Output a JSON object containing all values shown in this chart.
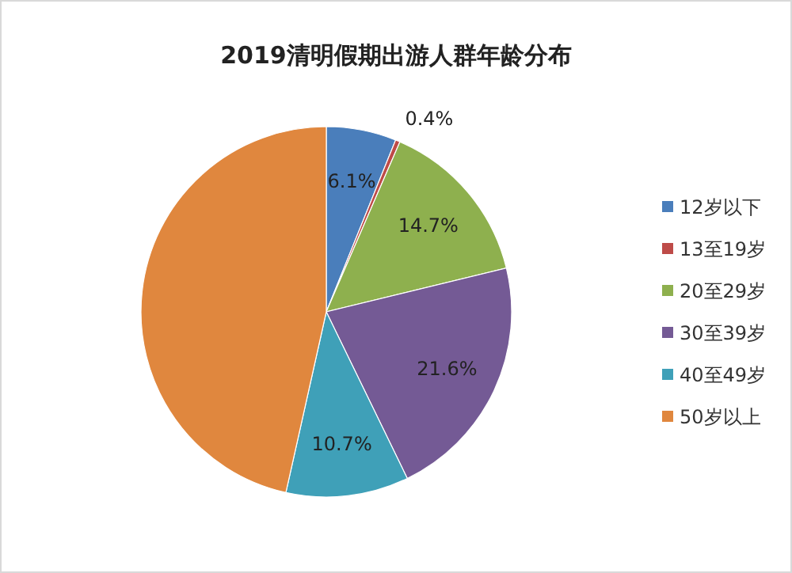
{
  "chart_data": {
    "type": "pie",
    "title": "2019清明假期出游人群年龄分布",
    "categories": [
      "12岁以下",
      "13至19岁",
      "20至29岁",
      "30至39岁",
      "40至49岁",
      "50岁以上"
    ],
    "values": [
      6.1,
      0.4,
      14.7,
      21.6,
      10.7,
      46.5
    ],
    "value_labels": [
      "6.1%",
      "0.4%",
      "14.7%",
      "21.6%",
      "10.7%",
      null
    ],
    "colors": [
      "#4a7ebb",
      "#be4b48",
      "#8eb04e",
      "#745a95",
      "#3fa0b8",
      "#e0873e"
    ],
    "legend": "right"
  }
}
